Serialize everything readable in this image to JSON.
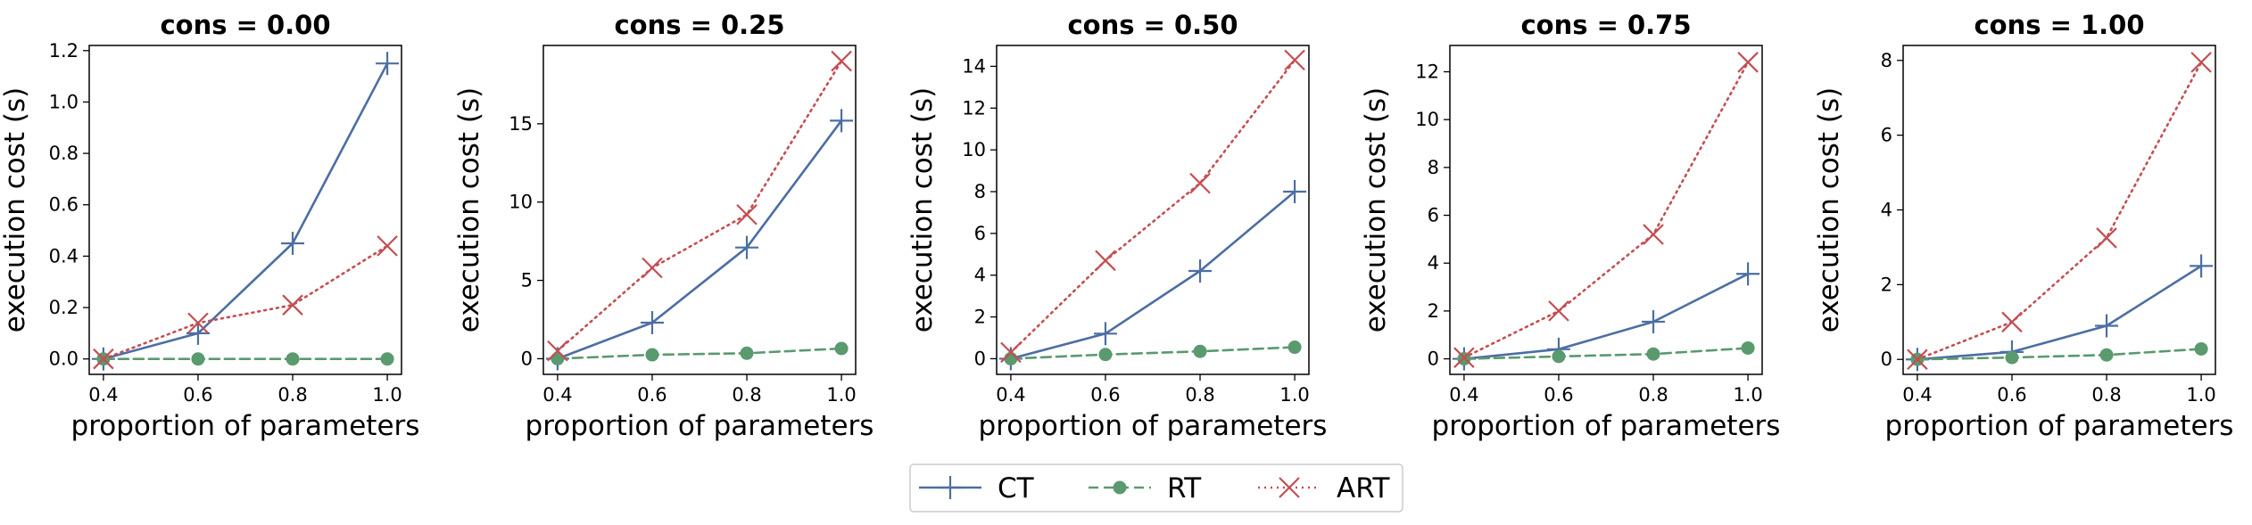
{
  "colors": {
    "CT": "#4c6ea3",
    "RT": "#5a9a6e",
    "ART": "#c44e52",
    "axis": "#000000"
  },
  "legend": {
    "placement": "bottom-center",
    "entries": [
      {
        "name": "CT",
        "marker": "plus",
        "line": "solid"
      },
      {
        "name": "RT",
        "marker": "circle",
        "line": "dashed"
      },
      {
        "name": "ART",
        "marker": "x",
        "line": "dotted"
      }
    ]
  },
  "chart_data": [
    {
      "type": "line",
      "title": "cons = 0.00",
      "xlabel": "proportion of parameters",
      "ylabel": "execution cost (s)",
      "x": [
        0.4,
        0.6,
        0.8,
        1.0
      ],
      "xticks": [
        "0.4",
        "0.6",
        "0.8",
        "1.0"
      ],
      "xlim": [
        0.37,
        1.03
      ],
      "ylim": [
        -0.06,
        1.22
      ],
      "yticks": [
        "0.0",
        "0.2",
        "0.4",
        "0.6",
        "0.8",
        "1.0",
        "1.2"
      ],
      "series": [
        {
          "name": "CT",
          "values": [
            0.0,
            0.1,
            0.45,
            1.15
          ]
        },
        {
          "name": "RT",
          "values": [
            0.0,
            0.0,
            0.0,
            0.0
          ]
        },
        {
          "name": "ART",
          "values": [
            0.0,
            0.14,
            0.21,
            0.44
          ]
        }
      ]
    },
    {
      "type": "line",
      "title": "cons = 0.25",
      "xlabel": "proportion of parameters",
      "ylabel": "execution cost (s)",
      "x": [
        0.4,
        0.6,
        0.8,
        1.0
      ],
      "xticks": [
        "0.4",
        "0.6",
        "0.8",
        "1.0"
      ],
      "xlim": [
        0.37,
        1.03
      ],
      "ylim": [
        -1.0,
        20.0
      ],
      "yticks": [
        "0",
        "5",
        "10",
        "15"
      ],
      "series": [
        {
          "name": "CT",
          "values": [
            0.0,
            2.3,
            7.1,
            15.2
          ]
        },
        {
          "name": "RT",
          "values": [
            0.0,
            0.25,
            0.35,
            0.65
          ]
        },
        {
          "name": "ART",
          "values": [
            0.5,
            5.8,
            9.2,
            19.0
          ]
        }
      ]
    },
    {
      "type": "line",
      "title": "cons = 0.50",
      "xlabel": "proportion of parameters",
      "ylabel": "execution cost (s)",
      "x": [
        0.4,
        0.6,
        0.8,
        1.0
      ],
      "xticks": [
        "0.4",
        "0.6",
        "0.8",
        "1.0"
      ],
      "xlim": [
        0.37,
        1.03
      ],
      "ylim": [
        -0.75,
        15.0
      ],
      "yticks": [
        "0",
        "2",
        "4",
        "6",
        "8",
        "10",
        "12",
        "14"
      ],
      "series": [
        {
          "name": "CT",
          "values": [
            0.0,
            1.2,
            4.2,
            8.0
          ]
        },
        {
          "name": "RT",
          "values": [
            0.0,
            0.2,
            0.35,
            0.55
          ]
        },
        {
          "name": "ART",
          "values": [
            0.3,
            4.7,
            8.4,
            14.3
          ]
        }
      ]
    },
    {
      "type": "line",
      "title": "cons = 0.75",
      "xlabel": "proportion of parameters",
      "ylabel": "execution cost (s)",
      "x": [
        0.4,
        0.6,
        0.8,
        1.0
      ],
      "xticks": [
        "0.4",
        "0.6",
        "0.8",
        "1.0"
      ],
      "xlim": [
        0.37,
        1.03
      ],
      "ylim": [
        -0.65,
        13.1
      ],
      "yticks": [
        "0",
        "2",
        "4",
        "6",
        "8",
        "10",
        "12"
      ],
      "series": [
        {
          "name": "CT",
          "values": [
            0.0,
            0.4,
            1.55,
            3.55
          ]
        },
        {
          "name": "RT",
          "values": [
            0.0,
            0.1,
            0.2,
            0.45
          ]
        },
        {
          "name": "ART",
          "values": [
            0.05,
            2.0,
            5.2,
            12.4
          ]
        }
      ]
    },
    {
      "type": "line",
      "title": "cons = 1.00",
      "xlabel": "proportion of parameters",
      "ylabel": "execution cost (s)",
      "x": [
        0.4,
        0.6,
        0.8,
        1.0
      ],
      "xticks": [
        "0.4",
        "0.6",
        "0.8",
        "1.0"
      ],
      "xlim": [
        0.37,
        1.03
      ],
      "ylim": [
        -0.4,
        8.4
      ],
      "yticks": [
        "0",
        "2",
        "4",
        "6",
        "8"
      ],
      "series": [
        {
          "name": "CT",
          "values": [
            0.0,
            0.2,
            0.9,
            2.5
          ]
        },
        {
          "name": "RT",
          "values": [
            0.0,
            0.05,
            0.12,
            0.28
          ]
        },
        {
          "name": "ART",
          "values": [
            0.0,
            1.0,
            3.25,
            7.95
          ]
        }
      ]
    }
  ]
}
